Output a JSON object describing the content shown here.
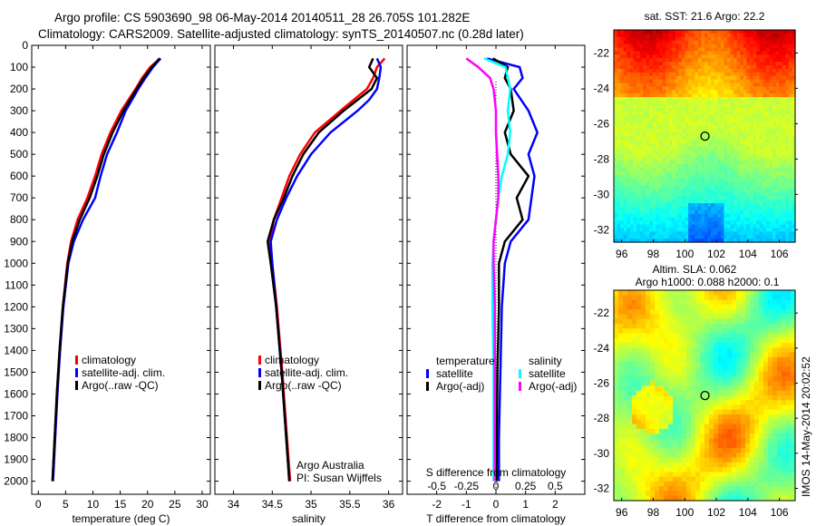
{
  "header": {
    "line1": "Argo profile: CS 5903690_98 06-May-2014 20140511_28 26.705S 101.282E",
    "line2": "Climatology: CARS2009. Satellite-adjusted climatology: synTS_20140507.nc (0.28d later)"
  },
  "footer_stamp": "IMOS 14-May-2014 20:02:52",
  "colors": {
    "climatology": "#ff0000",
    "satellite": "#0000ff",
    "argo": "#000000",
    "sal_satellite": "#00ffff",
    "sal_argo": "#ff00ff"
  },
  "chart_data": [
    {
      "type": "line",
      "id": "temperature",
      "xlabel": "temperature (deg C)",
      "ylabel": "depth",
      "xlim": [
        -1.2,
        31.5
      ],
      "ylim": [
        2060,
        0
      ],
      "xticks": [
        0,
        5,
        10,
        15,
        20,
        25,
        30
      ],
      "yticks": [
        0,
        100,
        200,
        300,
        400,
        500,
        600,
        700,
        800,
        900,
        1000,
        1100,
        1200,
        1300,
        1400,
        1500,
        1600,
        1700,
        1800,
        1900,
        2000
      ],
      "legend": [
        "climatology",
        "satellite-adj. clim.",
        "Argo(..raw -QC)"
      ],
      "legend_position": "lower-center",
      "depth": [
        60,
        100,
        150,
        200,
        300,
        400,
        500,
        600,
        700,
        800,
        900,
        1000,
        1200,
        1400,
        1600,
        1800,
        2000
      ],
      "series": [
        {
          "name": "climatology",
          "color": "#ff0000",
          "values": [
            22.3,
            20.5,
            19,
            17.8,
            15.2,
            13.2,
            11.6,
            10.4,
            9,
            7.2,
            6,
            5.3,
            4.5,
            3.9,
            3.4,
            3,
            2.6
          ]
        },
        {
          "name": "satellite-adj. clim.",
          "color": "#0000ff",
          "values": [
            22.4,
            21,
            19.6,
            18.3,
            16,
            14.4,
            12.6,
            11.4,
            10.4,
            8.2,
            6.5,
            5.5,
            4.6,
            4,
            3.5,
            3.1,
            2.7
          ]
        },
        {
          "name": "Argo(..raw -QC)",
          "color": "#000000",
          "values": [
            22.2,
            20.8,
            19.3,
            18,
            15.6,
            13.6,
            12,
            10.8,
            9.4,
            7.6,
            6.2,
            5.4,
            4.5,
            3.9,
            3.4,
            3,
            2.6
          ]
        }
      ]
    },
    {
      "type": "line",
      "id": "salinity",
      "xlabel": "salinity",
      "xlim": [
        33.76,
        36.18
      ],
      "ylim": [
        2060,
        0
      ],
      "xticks": [
        34,
        34.5,
        35,
        35.5,
        36
      ],
      "legend": [
        "climatology",
        "satellite-adj. clim.",
        "Argo(..raw -QC)"
      ],
      "annotation": [
        "Argo Australia",
        "PI: Susan Wijffels"
      ],
      "depth": [
        60,
        100,
        150,
        200,
        250,
        300,
        400,
        500,
        600,
        700,
        800,
        900,
        1000,
        1200,
        1500,
        1800,
        2000
      ],
      "series": [
        {
          "name": "climatology",
          "color": "#ff0000",
          "values": [
            35.95,
            35.85,
            35.8,
            35.72,
            35.55,
            35.38,
            35.05,
            34.86,
            34.72,
            34.62,
            34.52,
            34.47,
            34.5,
            34.56,
            34.63,
            34.69,
            34.73
          ]
        },
        {
          "name": "satellite-adj. clim.",
          "color": "#0000ff",
          "values": [
            35.85,
            35.9,
            35.88,
            35.85,
            35.75,
            35.6,
            35.25,
            35.0,
            34.82,
            34.68,
            34.56,
            34.48,
            34.5,
            34.55,
            34.62,
            34.68,
            34.72
          ]
        },
        {
          "name": "Argo(..raw -QC)",
          "color": "#000000",
          "values": [
            35.8,
            35.75,
            35.85,
            35.78,
            35.6,
            35.42,
            35.1,
            34.9,
            34.76,
            34.65,
            34.52,
            34.44,
            34.48,
            34.55,
            34.62,
            34.68,
            34.72
          ]
        }
      ]
    },
    {
      "type": "line",
      "id": "difference",
      "xlabel": "T difference from climatology",
      "x2label": "S difference from climatology",
      "xlim": [
        -3.0,
        3.0
      ],
      "x2lim": [
        -0.75,
        0.75
      ],
      "ylim": [
        2060,
        0
      ],
      "xticks": [
        -2,
        -1,
        0,
        1,
        2
      ],
      "x2ticks": [
        -0.5,
        -0.25,
        0,
        0.25,
        0.5
      ],
      "x2ticklabels": [
        "-0.5",
        "-0.25",
        "0",
        "0.25",
        "0.5"
      ],
      "legend_temperature": {
        "title": "temperature",
        "items": [
          "satellite",
          "Argo(-adj)"
        ]
      },
      "legend_salinity": {
        "title": "salinity",
        "items": [
          "satellite",
          "Argo(-adj)"
        ]
      },
      "depth": [
        60,
        100,
        150,
        200,
        300,
        400,
        500,
        600,
        700,
        800,
        900,
        1000,
        1200,
        1500,
        1800,
        2000
      ],
      "series": [
        {
          "name": "T satellite",
          "color": "#0000ff",
          "values": [
            -0.3,
            0.8,
            0.9,
            0.6,
            1.1,
            1.4,
            1.1,
            1.3,
            1.2,
            1.1,
            0.5,
            0.3,
            0.2,
            0.15,
            0.1,
            0.1
          ]
        },
        {
          "name": "T Argo(-adj)",
          "color": "#000000",
          "values": [
            -0.1,
            0.4,
            0.3,
            0.5,
            0.6,
            0.3,
            0.5,
            1.1,
            0.7,
            0.9,
            0.3,
            0.1,
            0.1,
            0.05,
            0.03,
            0.02
          ]
        },
        {
          "name": "S satellite",
          "color": "#00ffff",
          "values": [
            -0.1,
            0.08,
            0.1,
            0.12,
            0.1,
            0.12,
            0.1,
            0.05,
            0.02,
            0.0,
            -0.02,
            -0.03,
            -0.03,
            -0.02,
            -0.02,
            -0.02
          ]
        },
        {
          "name": "S Argo(-adj)",
          "color": "#ff00ff",
          "values": [
            -0.25,
            -0.15,
            -0.05,
            -0.02,
            0.0,
            0.0,
            0.01,
            0.02,
            0.02,
            0.0,
            -0.02,
            -0.02,
            -0.01,
            -0.01,
            -0.01,
            -0.01
          ]
        }
      ]
    },
    {
      "type": "heatmap",
      "id": "sst-map",
      "title": "sat. SST: 21.6  Argo: 22.2",
      "xlim": [
        95.5,
        107
      ],
      "ylim": [
        -32.7,
        -20.7
      ],
      "xticks": [
        96,
        98,
        100,
        102,
        104,
        106
      ],
      "yticks": [
        -22,
        -24,
        -26,
        -28,
        -30,
        -32
      ],
      "marker": {
        "lon": 101.282,
        "lat": -26.705
      }
    },
    {
      "type": "heatmap",
      "id": "sla-map",
      "title": "Altim. SLA: 0.062",
      "subtitle": "Argo h1000: 0.088 h2000: 0.1",
      "xlim": [
        95.5,
        107
      ],
      "ylim": [
        -32.7,
        -20.7
      ],
      "xticks": [
        96,
        98,
        100,
        102,
        104,
        106
      ],
      "yticks": [
        -22,
        -24,
        -26,
        -28,
        -30,
        -32
      ],
      "marker": {
        "lon": 101.282,
        "lat": -26.705
      }
    }
  ]
}
